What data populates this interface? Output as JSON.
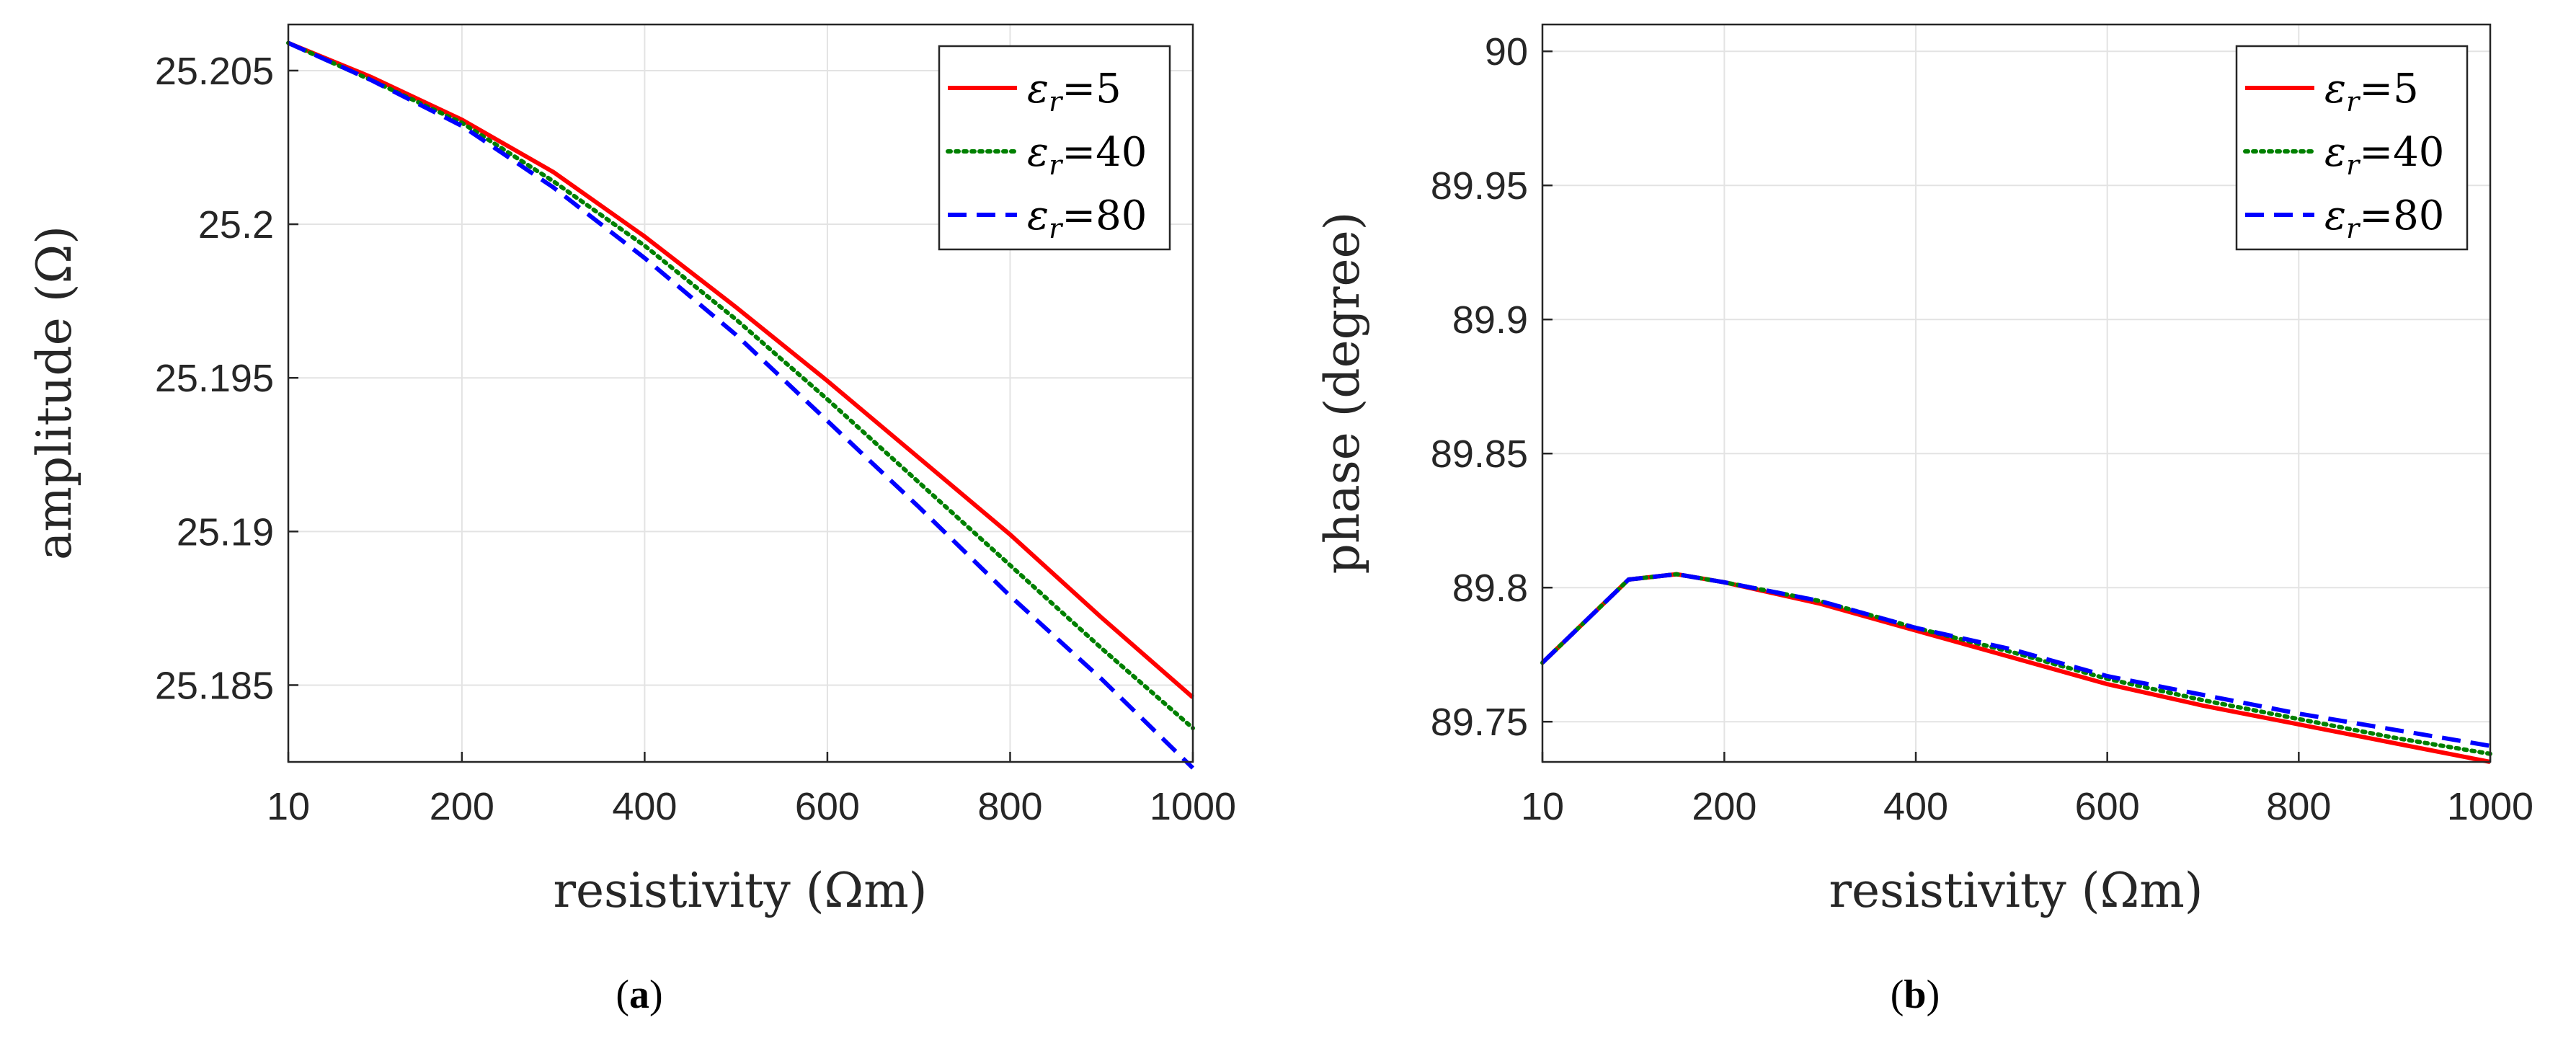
{
  "figure": {
    "panels": [
      {
        "caption": {
          "open": "(",
          "letter": "a",
          "close": ")"
        },
        "legend_position": "top-right",
        "chart_data": {
          "type": "line",
          "title": "",
          "xlabel": "resistivity (Ωm)",
          "ylabel": "amplitude (Ω)",
          "xlim": [
            10,
            1000
          ],
          "ylim": [
            25.1825,
            25.2065
          ],
          "xticks": [
            10,
            200,
            400,
            600,
            800,
            1000
          ],
          "xtick_labels": [
            "10",
            "200",
            "400",
            "600",
            "800",
            "1000"
          ],
          "yticks": [
            25.185,
            25.19,
            25.195,
            25.2,
            25.205
          ],
          "ytick_labels": [
            "25.185",
            "25.19",
            "25.195",
            "25.2",
            "25.205"
          ],
          "grid": true,
          "x": [
            10,
            100,
            200,
            300,
            400,
            500,
            600,
            700,
            800,
            900,
            1000
          ],
          "series": [
            {
              "name": "εr=5",
              "sub": "r",
              "value": "5",
              "color": "#ff0000",
              "style": "solid",
              "values": [
                25.2059,
                25.2048,
                25.2034,
                25.2017,
                25.1996,
                25.1973,
                25.1949,
                25.1924,
                25.1899,
                25.1872,
                25.1846
              ]
            },
            {
              "name": "εr=40",
              "sub": "r",
              "value": "40",
              "color": "#008000",
              "style": "dotted",
              "values": [
                25.2059,
                25.2047,
                25.2033,
                25.2014,
                25.1993,
                25.1969,
                25.1943,
                25.1916,
                25.1889,
                25.1862,
                25.1836
              ]
            },
            {
              "name": "εr=80",
              "sub": "r",
              "value": "80",
              "color": "#0000ff",
              "style": "dashed",
              "values": [
                25.2059,
                25.2047,
                25.2032,
                25.2012,
                25.1989,
                25.1964,
                25.1936,
                25.1908,
                25.1879,
                25.1852,
                25.1823
              ]
            }
          ]
        }
      },
      {
        "caption": {
          "open": "(",
          "letter": "b",
          "close": ")"
        },
        "legend_position": "top-right",
        "chart_data": {
          "type": "line",
          "title": "",
          "xlabel": "resistivity (Ωm)",
          "ylabel": "phase (degree)",
          "xlim": [
            10,
            1000
          ],
          "ylim": [
            89.735,
            90.01
          ],
          "xticks": [
            10,
            200,
            400,
            600,
            800,
            1000
          ],
          "xtick_labels": [
            "10",
            "200",
            "400",
            "600",
            "800",
            "1000"
          ],
          "yticks": [
            89.75,
            89.8,
            89.85,
            89.9,
            89.95,
            90
          ],
          "ytick_labels": [
            "89.75",
            "89.8",
            "89.85",
            "89.9",
            "89.95",
            "90"
          ],
          "grid": true,
          "x": [
            10,
            100,
            150,
            200,
            300,
            400,
            500,
            600,
            700,
            800,
            900,
            1000
          ],
          "series": [
            {
              "name": "εr=5",
              "sub": "r",
              "value": "5",
              "color": "#ff0000",
              "style": "solid",
              "values": [
                89.772,
                89.803,
                89.805,
                89.802,
                89.794,
                89.784,
                89.774,
                89.764,
                89.756,
                89.749,
                89.742,
                89.735
              ]
            },
            {
              "name": "εr=40",
              "sub": "r",
              "value": "40",
              "color": "#008000",
              "style": "dotted",
              "values": [
                89.772,
                89.803,
                89.805,
                89.802,
                89.795,
                89.785,
                89.776,
                89.766,
                89.758,
                89.751,
                89.744,
                89.738
              ]
            },
            {
              "name": "εr=80",
              "sub": "r",
              "value": "80",
              "color": "#0000ff",
              "style": "dashed",
              "values": [
                89.772,
                89.803,
                89.805,
                89.802,
                89.795,
                89.785,
                89.777,
                89.767,
                89.76,
                89.753,
                89.747,
                89.741
              ]
            }
          ]
        }
      }
    ]
  }
}
